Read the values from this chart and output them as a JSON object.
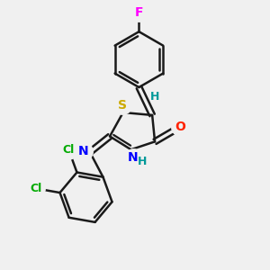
{
  "bg_color": "#f0f0f0",
  "bond_color": "#1a1a1a",
  "bond_width": 1.8,
  "atom_colors": {
    "F": "#ff00ff",
    "Cl": "#00aa00",
    "S": "#ccaa00",
    "N": "#0000ff",
    "O": "#ff2200",
    "H": "#009999",
    "C": "#1a1a1a"
  }
}
